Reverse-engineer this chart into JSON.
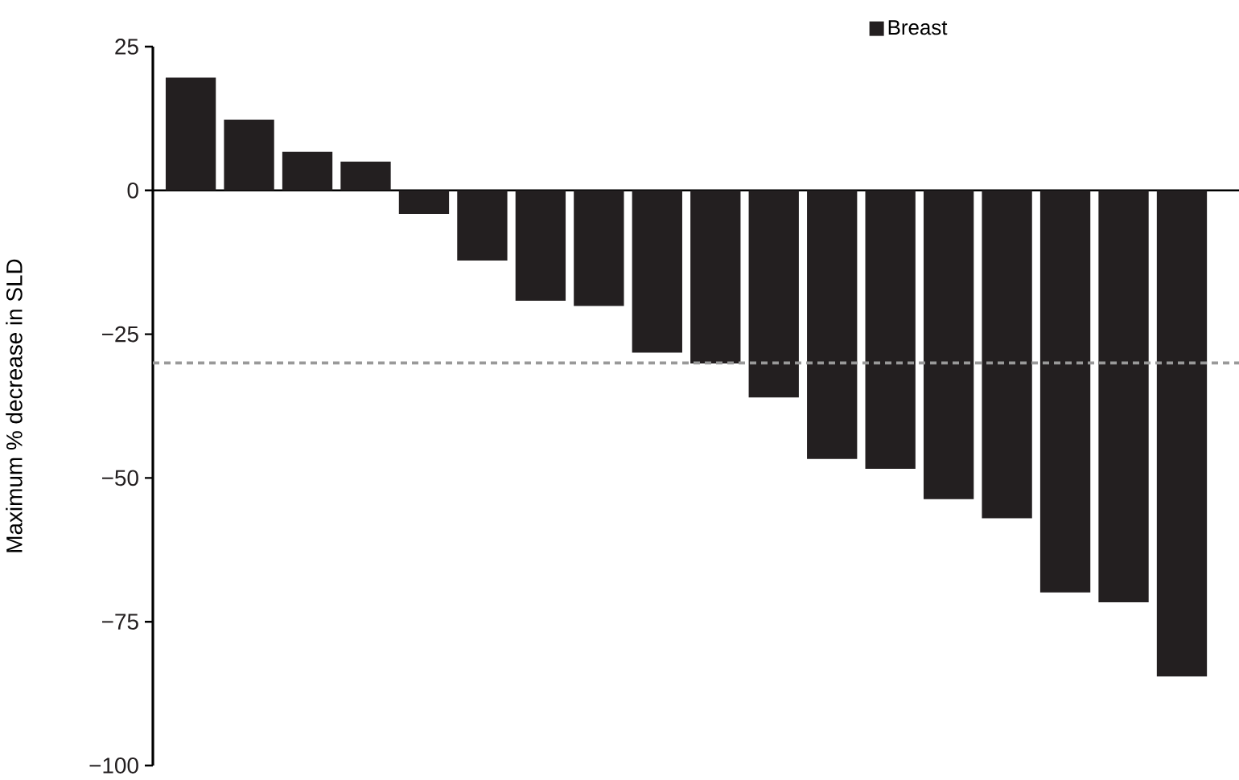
{
  "chart_data": {
    "type": "bar",
    "ylabel": "Maximum % decrease in SLD",
    "categories": [
      null,
      null,
      null,
      null,
      null,
      null,
      null,
      null,
      null,
      null,
      null,
      null,
      null,
      null,
      null,
      null,
      null,
      null
    ],
    "series": [
      {
        "name": "Breast",
        "color": "#231f20",
        "values": [
          19.6,
          12.3,
          6.7,
          5.0,
          -4.1,
          -12.2,
          -19.2,
          -20.1,
          -28.2,
          -30.1,
          -36.0,
          -46.7,
          -48.4,
          -53.7,
          -57.0,
          -69.9,
          -71.6,
          -84.5
        ]
      }
    ],
    "ylim": [
      -100,
      25
    ],
    "yticks": [
      {
        "value": -100,
        "label": "−100"
      },
      {
        "value": -75,
        "label": "−75"
      },
      {
        "value": -50,
        "label": "−50"
      },
      {
        "value": -25,
        "label": "−25"
      },
      0,
      25
    ],
    "ref_lines": [
      {
        "axis": "y",
        "value": -30,
        "color": "#999999",
        "line_style": "dashed"
      }
    ],
    "legend": "top right"
  }
}
